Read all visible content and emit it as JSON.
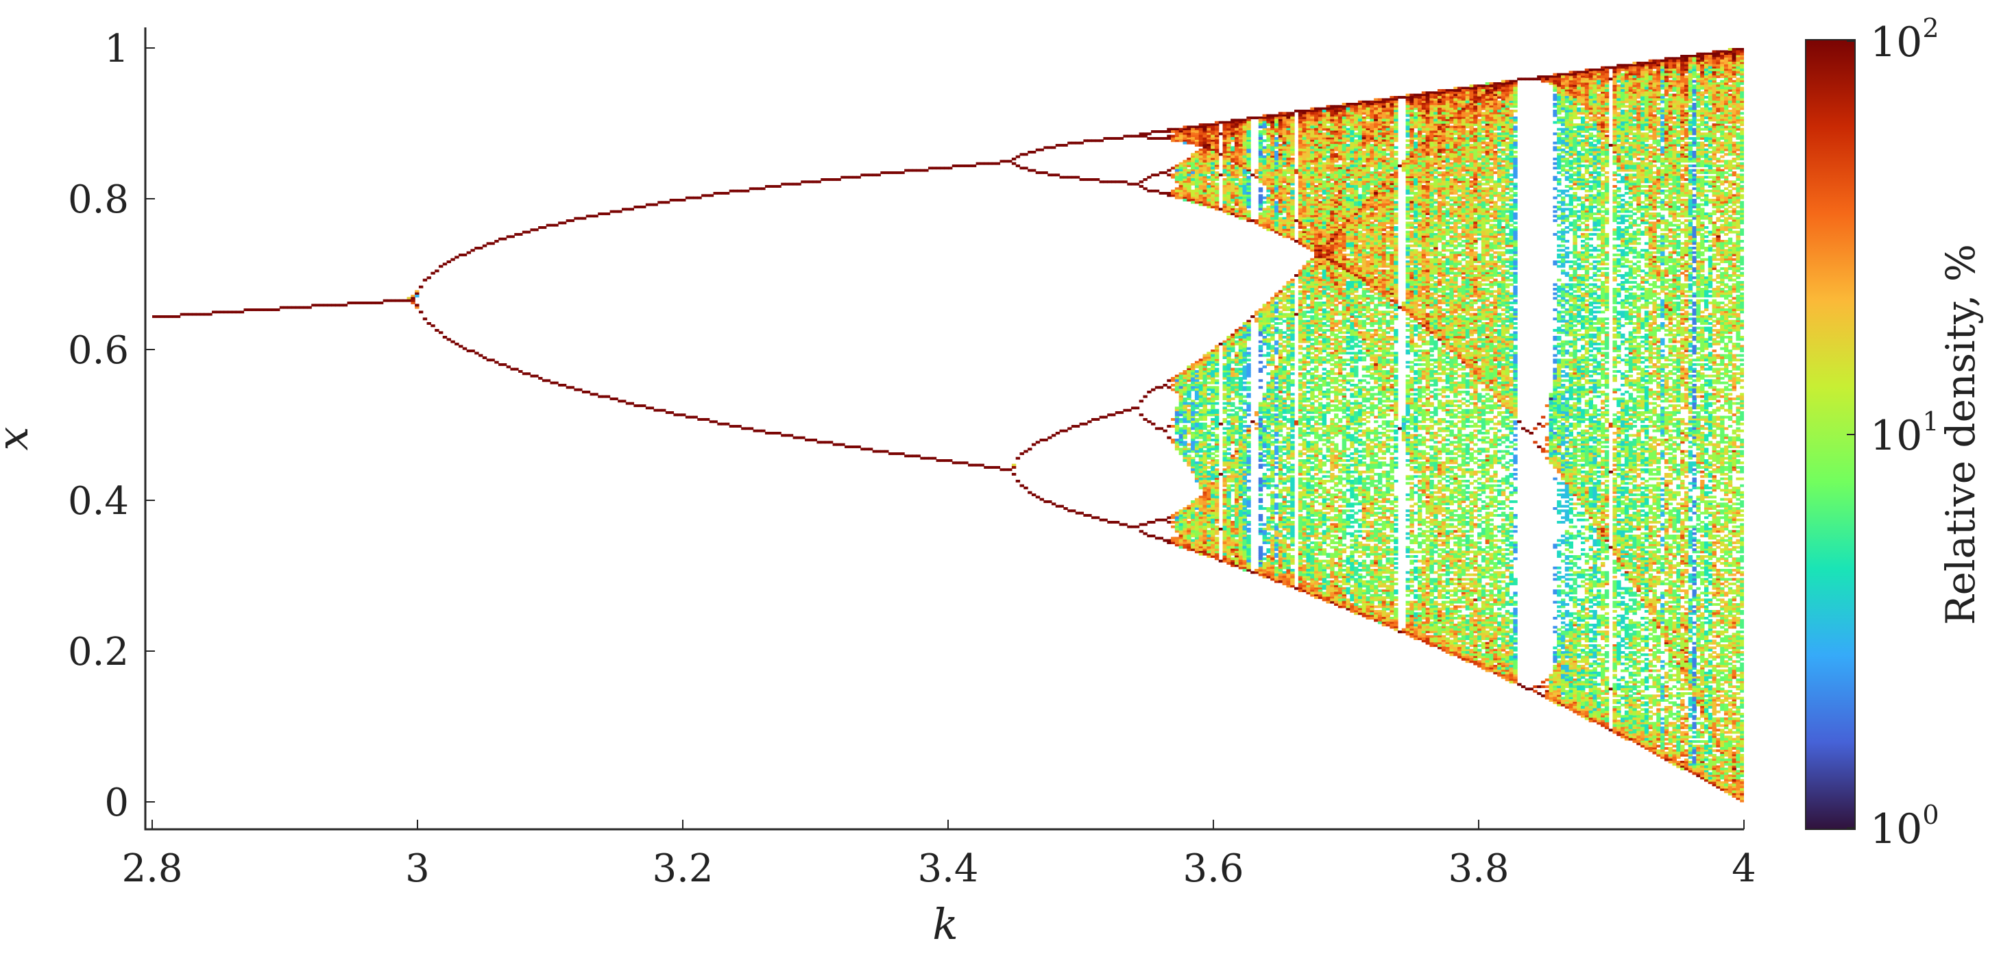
{
  "chart_data": {
    "type": "scatter",
    "title": "",
    "xlabel": "k",
    "ylabel": "x",
    "xlim": [
      2.8,
      4.0
    ],
    "ylim": [
      0,
      1
    ],
    "x_ticks": [
      "2.8",
      "3",
      "3.2",
      "3.4",
      "3.6",
      "3.8",
      "4"
    ],
    "y_ticks": [
      "0",
      "0.2",
      "0.4",
      "0.6",
      "0.8",
      "1"
    ],
    "grid": false,
    "description_of_data": "Bifurcation diagram of the logistic map x -> k x (1 - x): asymptotic x values plotted against k, colored by relative density.",
    "key_points": [
      {
        "k": 2.8,
        "x": 0.643
      },
      {
        "k": 3.0,
        "x": 0.667
      },
      {
        "k": 3.449,
        "x_branches": [
          0.849,
          0.44
        ]
      },
      {
        "k": 3.544,
        "x_branches": [
          0.885,
          0.82,
          0.53,
          0.36
        ]
      },
      {
        "k": 4.0,
        "x_range": [
          0.0,
          1.0
        ]
      }
    ],
    "colorbar": {
      "label": "Relative density, %",
      "scale": "log",
      "min_label_base": "10",
      "min_label_exp": "0",
      "mid_label_base": "10",
      "mid_label_exp": "1",
      "max_label_base": "10",
      "max_label_exp": "2",
      "range": [
        1,
        100
      ],
      "colormap": [
        "#30123b",
        "#4662d7",
        "#36aaf9",
        "#1ae4b6",
        "#72fe5e",
        "#c7ef34",
        "#fbb938",
        "#f56918",
        "#c92903",
        "#7a0403"
      ]
    }
  }
}
